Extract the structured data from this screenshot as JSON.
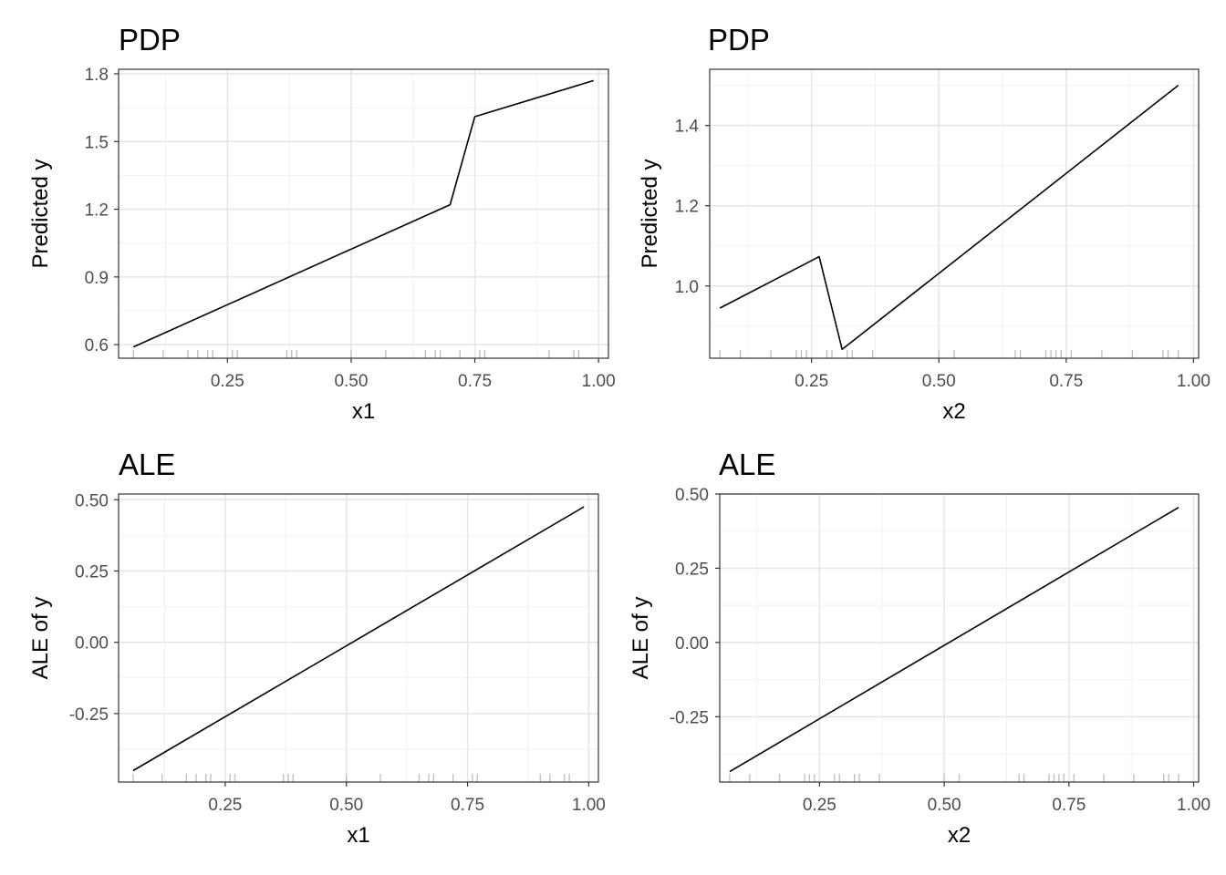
{
  "chart_data": [
    {
      "type": "line",
      "title": "PDP",
      "xlabel": "x1",
      "ylabel": "Predicted y",
      "xlim": [
        0.03,
        1.02
      ],
      "ylim": [
        0.54,
        1.82
      ],
      "x_ticks": [
        0.25,
        0.5,
        0.75,
        1.0
      ],
      "x_tick_labels": [
        "0.25",
        "0.50",
        "0.75",
        "1.00"
      ],
      "y_ticks": [
        0.6,
        0.9,
        1.2,
        1.5,
        1.8
      ],
      "y_tick_labels": [
        "0.6",
        "0.9",
        "1.2",
        "1.5",
        "1.8"
      ],
      "grid": true,
      "series": [
        {
          "x": [
            0.06,
            0.7,
            0.75,
            0.99
          ],
          "y": [
            0.59,
            1.22,
            1.61,
            1.77
          ]
        }
      ],
      "rug": [
        0.06,
        0.12,
        0.17,
        0.19,
        0.21,
        0.22,
        0.26,
        0.27,
        0.37,
        0.38,
        0.38,
        0.39,
        0.5,
        0.57,
        0.65,
        0.67,
        0.68,
        0.72,
        0.76,
        0.77,
        0.9,
        0.95,
        0.96
      ]
    },
    {
      "type": "line",
      "title": "PDP",
      "xlabel": "x2",
      "ylabel": "Predicted y",
      "xlim": [
        0.05,
        1.01
      ],
      "ylim": [
        0.82,
        1.54
      ],
      "x_ticks": [
        0.25,
        0.5,
        0.75,
        1.0
      ],
      "x_tick_labels": [
        "0.25",
        "0.50",
        "0.75",
        "1.00"
      ],
      "y_ticks": [
        1.0,
        1.2,
        1.4
      ],
      "y_tick_labels": [
        "1.0",
        "1.2",
        "1.4"
      ],
      "grid": true,
      "series": [
        {
          "x": [
            0.07,
            0.265,
            0.31,
            0.97
          ],
          "y": [
            0.945,
            1.073,
            0.842,
            1.5
          ]
        }
      ],
      "rug": [
        0.07,
        0.11,
        0.17,
        0.22,
        0.23,
        0.24,
        0.28,
        0.29,
        0.32,
        0.33,
        0.37,
        0.5,
        0.53,
        0.65,
        0.66,
        0.71,
        0.72,
        0.73,
        0.74,
        0.76,
        0.82,
        0.88,
        0.94,
        0.95,
        0.97
      ]
    },
    {
      "type": "line",
      "title": "ALE",
      "xlabel": "x1",
      "ylabel": "ALE of y",
      "xlim": [
        0.03,
        1.02
      ],
      "ylim": [
        -0.49,
        0.52
      ],
      "x_ticks": [
        0.25,
        0.5,
        0.75,
        1.0
      ],
      "x_tick_labels": [
        "0.25",
        "0.50",
        "0.75",
        "1.00"
      ],
      "y_ticks": [
        -0.25,
        0.0,
        0.25,
        0.5
      ],
      "y_tick_labels": [
        "-0.25",
        "0.00",
        "0.25",
        "0.50"
      ],
      "grid": true,
      "series": [
        {
          "x": [
            0.06,
            0.99
          ],
          "y": [
            -0.45,
            0.475
          ]
        }
      ],
      "rug": [
        0.06,
        0.12,
        0.17,
        0.19,
        0.21,
        0.22,
        0.26,
        0.27,
        0.37,
        0.38,
        0.38,
        0.39,
        0.5,
        0.57,
        0.65,
        0.67,
        0.68,
        0.72,
        0.76,
        0.77,
        0.9,
        0.92,
        0.95,
        0.96
      ]
    },
    {
      "type": "line",
      "title": "ALE",
      "xlabel": "x2",
      "ylabel": "ALE of y",
      "xlim": [
        0.05,
        1.01
      ],
      "ylim": [
        -0.47,
        0.5
      ],
      "x_ticks": [
        0.25,
        0.5,
        0.75,
        1.0
      ],
      "x_tick_labels": [
        "0.25",
        "0.50",
        "0.75",
        "1.00"
      ],
      "y_ticks": [
        -0.25,
        0.0,
        0.25,
        0.5
      ],
      "y_tick_labels": [
        "-0.25",
        "0.00",
        "0.25",
        "0.50"
      ],
      "grid": true,
      "series": [
        {
          "x": [
            0.07,
            0.97
          ],
          "y": [
            -0.435,
            0.455
          ]
        }
      ],
      "rug": [
        0.07,
        0.11,
        0.17,
        0.22,
        0.23,
        0.24,
        0.28,
        0.29,
        0.32,
        0.33,
        0.37,
        0.5,
        0.53,
        0.65,
        0.66,
        0.71,
        0.72,
        0.73,
        0.74,
        0.76,
        0.82,
        0.88,
        0.94,
        0.95,
        0.97
      ]
    }
  ]
}
